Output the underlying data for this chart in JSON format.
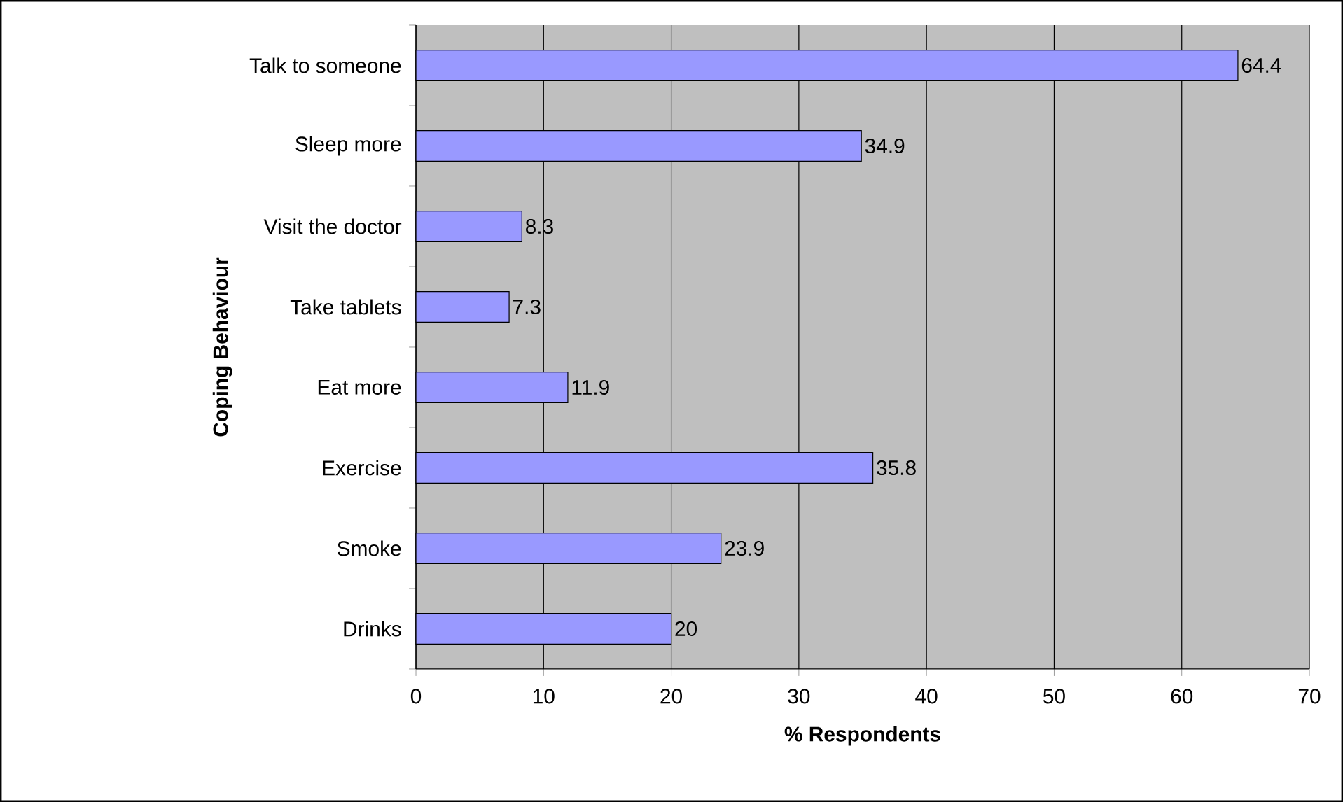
{
  "chart_data": {
    "type": "bar",
    "orientation": "horizontal",
    "xlabel": "% Respondents",
    "ylabel": "Coping Behaviour",
    "categories": [
      "Talk to someone",
      "Sleep more",
      "Visit the doctor",
      "Take tablets",
      "Eat more",
      "Exercise",
      "Smoke",
      "Drinks"
    ],
    "values": [
      64.4,
      34.9,
      8.3,
      7.3,
      11.9,
      35.8,
      23.9,
      20
    ],
    "color": "#9999ff",
    "xlim": [
      0,
      70
    ],
    "xticks": [
      0,
      10,
      20,
      30,
      40,
      50,
      60,
      70
    ],
    "grid": "x",
    "data_labels": true
  }
}
